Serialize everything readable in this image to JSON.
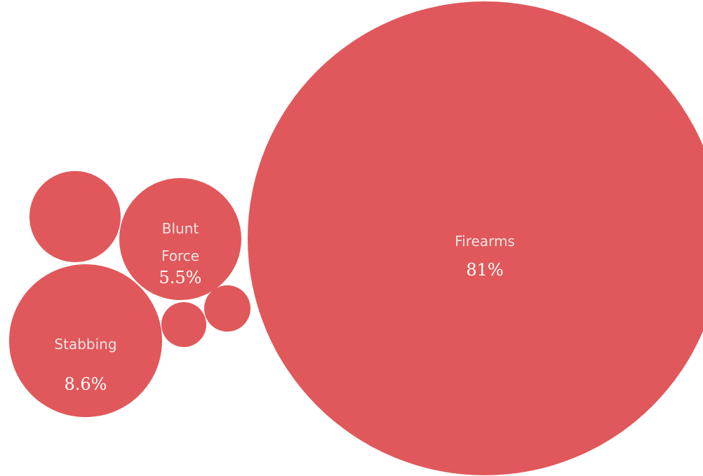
{
  "chart_data": {
    "type": "bubble",
    "title": "",
    "bubble_color": "#e0585b",
    "bubbles": [
      {
        "label": "Firearms",
        "label_lines": [
          "Firearms"
        ],
        "value": 81,
        "value_text": "81%"
      },
      {
        "label": "Stabbing",
        "label_lines": [
          "Stabbing"
        ],
        "value": 8.6,
        "value_text": "8.6%"
      },
      {
        "label": "Blunt Force",
        "label_lines": [
          "Blunt",
          "Force"
        ],
        "value": 5.5,
        "value_text": "5.5%"
      },
      {
        "label": "",
        "label_lines": [],
        "value_text": ""
      },
      {
        "label": "",
        "label_lines": [],
        "value_text": ""
      },
      {
        "label": "",
        "label_lines": [],
        "value_text": ""
      }
    ]
  }
}
